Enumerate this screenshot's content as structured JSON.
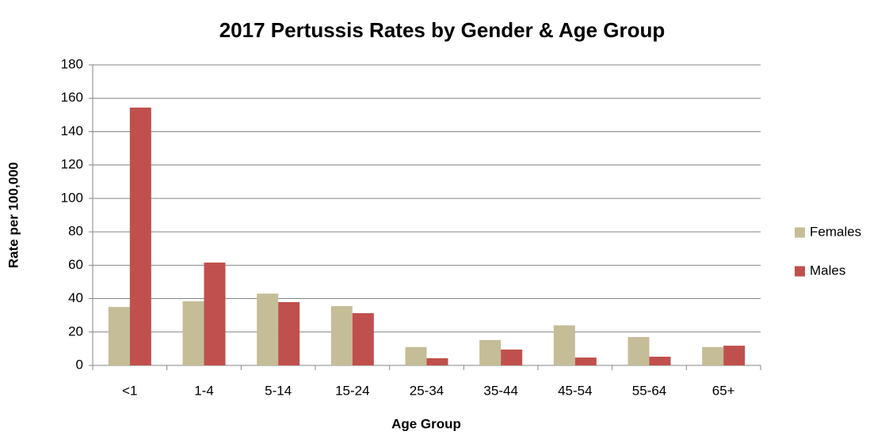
{
  "chart_data": {
    "type": "bar",
    "title": "2017 Pertussis Rates by Gender & Age Group",
    "x_label": "Age Group",
    "y_label": "Rate per 100,000",
    "categories": [
      "<1",
      "1-4",
      "5-14",
      "15-24",
      "25-34",
      "35-44",
      "45-54",
      "55-64",
      "65+"
    ],
    "series": [
      {
        "name": "Females",
        "color": "#c4bd97",
        "values": [
          35,
          38.4,
          43,
          35.5,
          11,
          15.2,
          24,
          17,
          11
        ]
      },
      {
        "name": "Males",
        "color": "#c0504d",
        "values": [
          154.4,
          61.6,
          37.9,
          31.3,
          4.3,
          9.5,
          4.7,
          5.2,
          11.8
        ]
      }
    ],
    "ylim": [
      0,
      180
    ],
    "yticks": [
      0,
      20,
      40,
      60,
      80,
      100,
      120,
      140,
      160,
      180
    ],
    "grid": true,
    "legend": "right"
  }
}
